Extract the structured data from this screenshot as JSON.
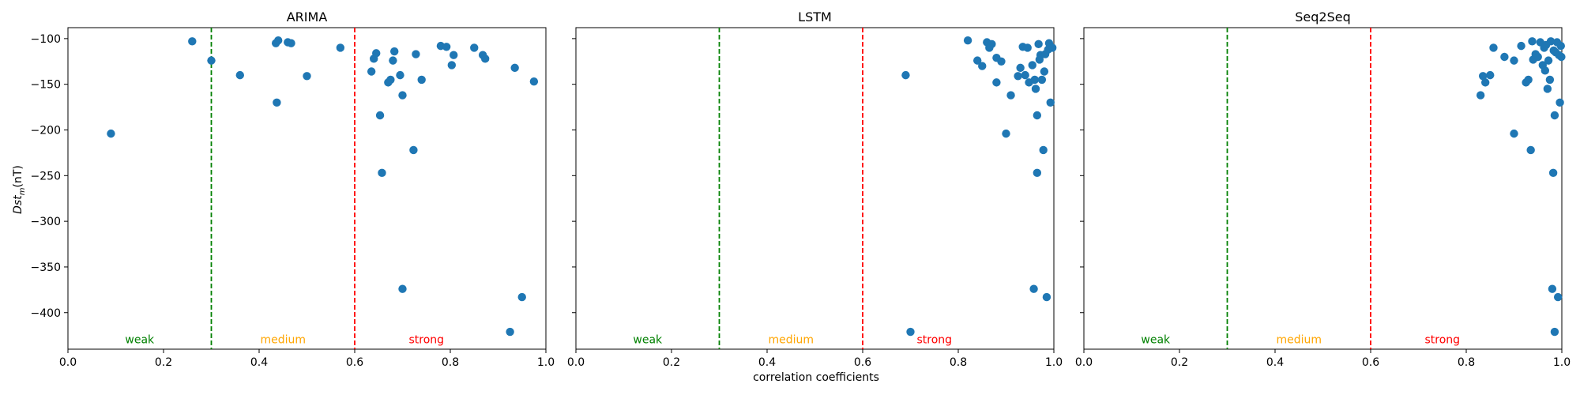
{
  "x_axis_label": "correlation coefficients",
  "y_axis_label_main": "Dst",
  "y_axis_label_sub": "m",
  "y_axis_label_unit": "(nT)",
  "zones": [
    {
      "label": "weak",
      "color": "#008000"
    },
    {
      "label": "medium",
      "color": "#FFA500"
    },
    {
      "label": "strong",
      "color": "#FF0000"
    }
  ],
  "colors": {
    "points": "#1f77b4",
    "weak_line": "#008000",
    "strong_line": "#FF0000"
  },
  "chart_data": [
    {
      "type": "scatter",
      "title": "ARIMA",
      "xlim": [
        0,
        1
      ],
      "ylim": [
        -440,
        -88
      ],
      "x_ticks": [
        "0.0",
        "0.2",
        "0.4",
        "0.6",
        "0.8",
        "1.0"
      ],
      "y_ticks": [
        "-100",
        "-150",
        "-200",
        "-250",
        "-300",
        "-350",
        "-400"
      ],
      "threshold_lines": [
        0.3,
        0.6
      ],
      "points": [
        [
          0.09,
          -204
        ],
        [
          0.26,
          -103
        ],
        [
          0.3,
          -124
        ],
        [
          0.36,
          -140
        ],
        [
          0.435,
          -105
        ],
        [
          0.44,
          -102
        ],
        [
          0.437,
          -170
        ],
        [
          0.46,
          -104
        ],
        [
          0.467,
          -105
        ],
        [
          0.5,
          -141
        ],
        [
          0.57,
          -110
        ],
        [
          0.635,
          -136
        ],
        [
          0.64,
          -122
        ],
        [
          0.645,
          -116
        ],
        [
          0.653,
          -184
        ],
        [
          0.657,
          -247
        ],
        [
          0.67,
          -148
        ],
        [
          0.675,
          -145
        ],
        [
          0.68,
          -124
        ],
        [
          0.683,
          -114
        ],
        [
          0.695,
          -140
        ],
        [
          0.7,
          -162
        ],
        [
          0.7,
          -374
        ],
        [
          0.723,
          -222
        ],
        [
          0.728,
          -117
        ],
        [
          0.74,
          -145
        ],
        [
          0.78,
          -108
        ],
        [
          0.792,
          -109
        ],
        [
          0.803,
          -129
        ],
        [
          0.807,
          -118
        ],
        [
          0.85,
          -110
        ],
        [
          0.868,
          -118
        ],
        [
          0.873,
          -122
        ],
        [
          0.925,
          -421
        ],
        [
          0.935,
          -132
        ],
        [
          0.95,
          -383
        ],
        [
          0.975,
          -147
        ]
      ]
    },
    {
      "type": "scatter",
      "title": "LSTM",
      "xlim": [
        0,
        1
      ],
      "ylim": [
        -440,
        -88
      ],
      "x_ticks": [
        "0.0",
        "0.2",
        "0.4",
        "0.6",
        "0.8",
        "1.0"
      ],
      "y_ticks": [],
      "threshold_lines": [
        0.3,
        0.6
      ],
      "points": [
        [
          0.69,
          -140
        ],
        [
          0.7,
          -421
        ],
        [
          0.82,
          -102
        ],
        [
          0.84,
          -124
        ],
        [
          0.85,
          -130
        ],
        [
          0.86,
          -104
        ],
        [
          0.865,
          -110
        ],
        [
          0.87,
          -106
        ],
        [
          0.88,
          -148
        ],
        [
          0.88,
          -121
        ],
        [
          0.89,
          -125
        ],
        [
          0.9,
          -204
        ],
        [
          0.91,
          -162
        ],
        [
          0.925,
          -141
        ],
        [
          0.93,
          -132
        ],
        [
          0.935,
          -109
        ],
        [
          0.94,
          -140
        ],
        [
          0.945,
          -110
        ],
        [
          0.948,
          -148
        ],
        [
          0.955,
          -129
        ],
        [
          0.958,
          -374
        ],
        [
          0.96,
          -145
        ],
        [
          0.962,
          -155
        ],
        [
          0.965,
          -184
        ],
        [
          0.965,
          -247
        ],
        [
          0.968,
          -106
        ],
        [
          0.97,
          -123
        ],
        [
          0.972,
          -118
        ],
        [
          0.975,
          -145
        ],
        [
          0.978,
          -222
        ],
        [
          0.98,
          -136
        ],
        [
          0.982,
          -117
        ],
        [
          0.985,
          -383
        ],
        [
          0.988,
          -112
        ],
        [
          0.99,
          -105
        ],
        [
          0.993,
          -170
        ],
        [
          0.997,
          -110
        ]
      ]
    },
    {
      "type": "scatter",
      "title": "Seq2Seq",
      "xlim": [
        0,
        1
      ],
      "ylim": [
        -440,
        -88
      ],
      "x_ticks": [
        "0.0",
        "0.2",
        "0.4",
        "0.6",
        "0.8",
        "1.0"
      ],
      "y_ticks": [],
      "threshold_lines": [
        0.3,
        0.6
      ],
      "points": [
        [
          0.83,
          -162
        ],
        [
          0.835,
          -141
        ],
        [
          0.84,
          -148
        ],
        [
          0.85,
          -140
        ],
        [
          0.857,
          -110
        ],
        [
          0.88,
          -120
        ],
        [
          0.9,
          -204
        ],
        [
          0.9,
          -124
        ],
        [
          0.915,
          -108
        ],
        [
          0.925,
          -148
        ],
        [
          0.93,
          -145
        ],
        [
          0.935,
          -222
        ],
        [
          0.938,
          -103
        ],
        [
          0.94,
          -123
        ],
        [
          0.945,
          -117
        ],
        [
          0.95,
          -120
        ],
        [
          0.955,
          -104
        ],
        [
          0.96,
          -129
        ],
        [
          0.963,
          -110
        ],
        [
          0.965,
          -135
        ],
        [
          0.967,
          -107
        ],
        [
          0.97,
          -155
        ],
        [
          0.972,
          -124
        ],
        [
          0.975,
          -145
        ],
        [
          0.977,
          -103
        ],
        [
          0.98,
          -374
        ],
        [
          0.982,
          -247
        ],
        [
          0.983,
          -113
        ],
        [
          0.985,
          -184
        ],
        [
          0.985,
          -421
        ],
        [
          0.987,
          -115
        ],
        [
          0.99,
          -104
        ],
        [
          0.992,
          -383
        ],
        [
          0.994,
          -118
        ],
        [
          0.996,
          -170
        ],
        [
          0.998,
          -108
        ],
        [
          0.999,
          -120
        ]
      ]
    }
  ]
}
